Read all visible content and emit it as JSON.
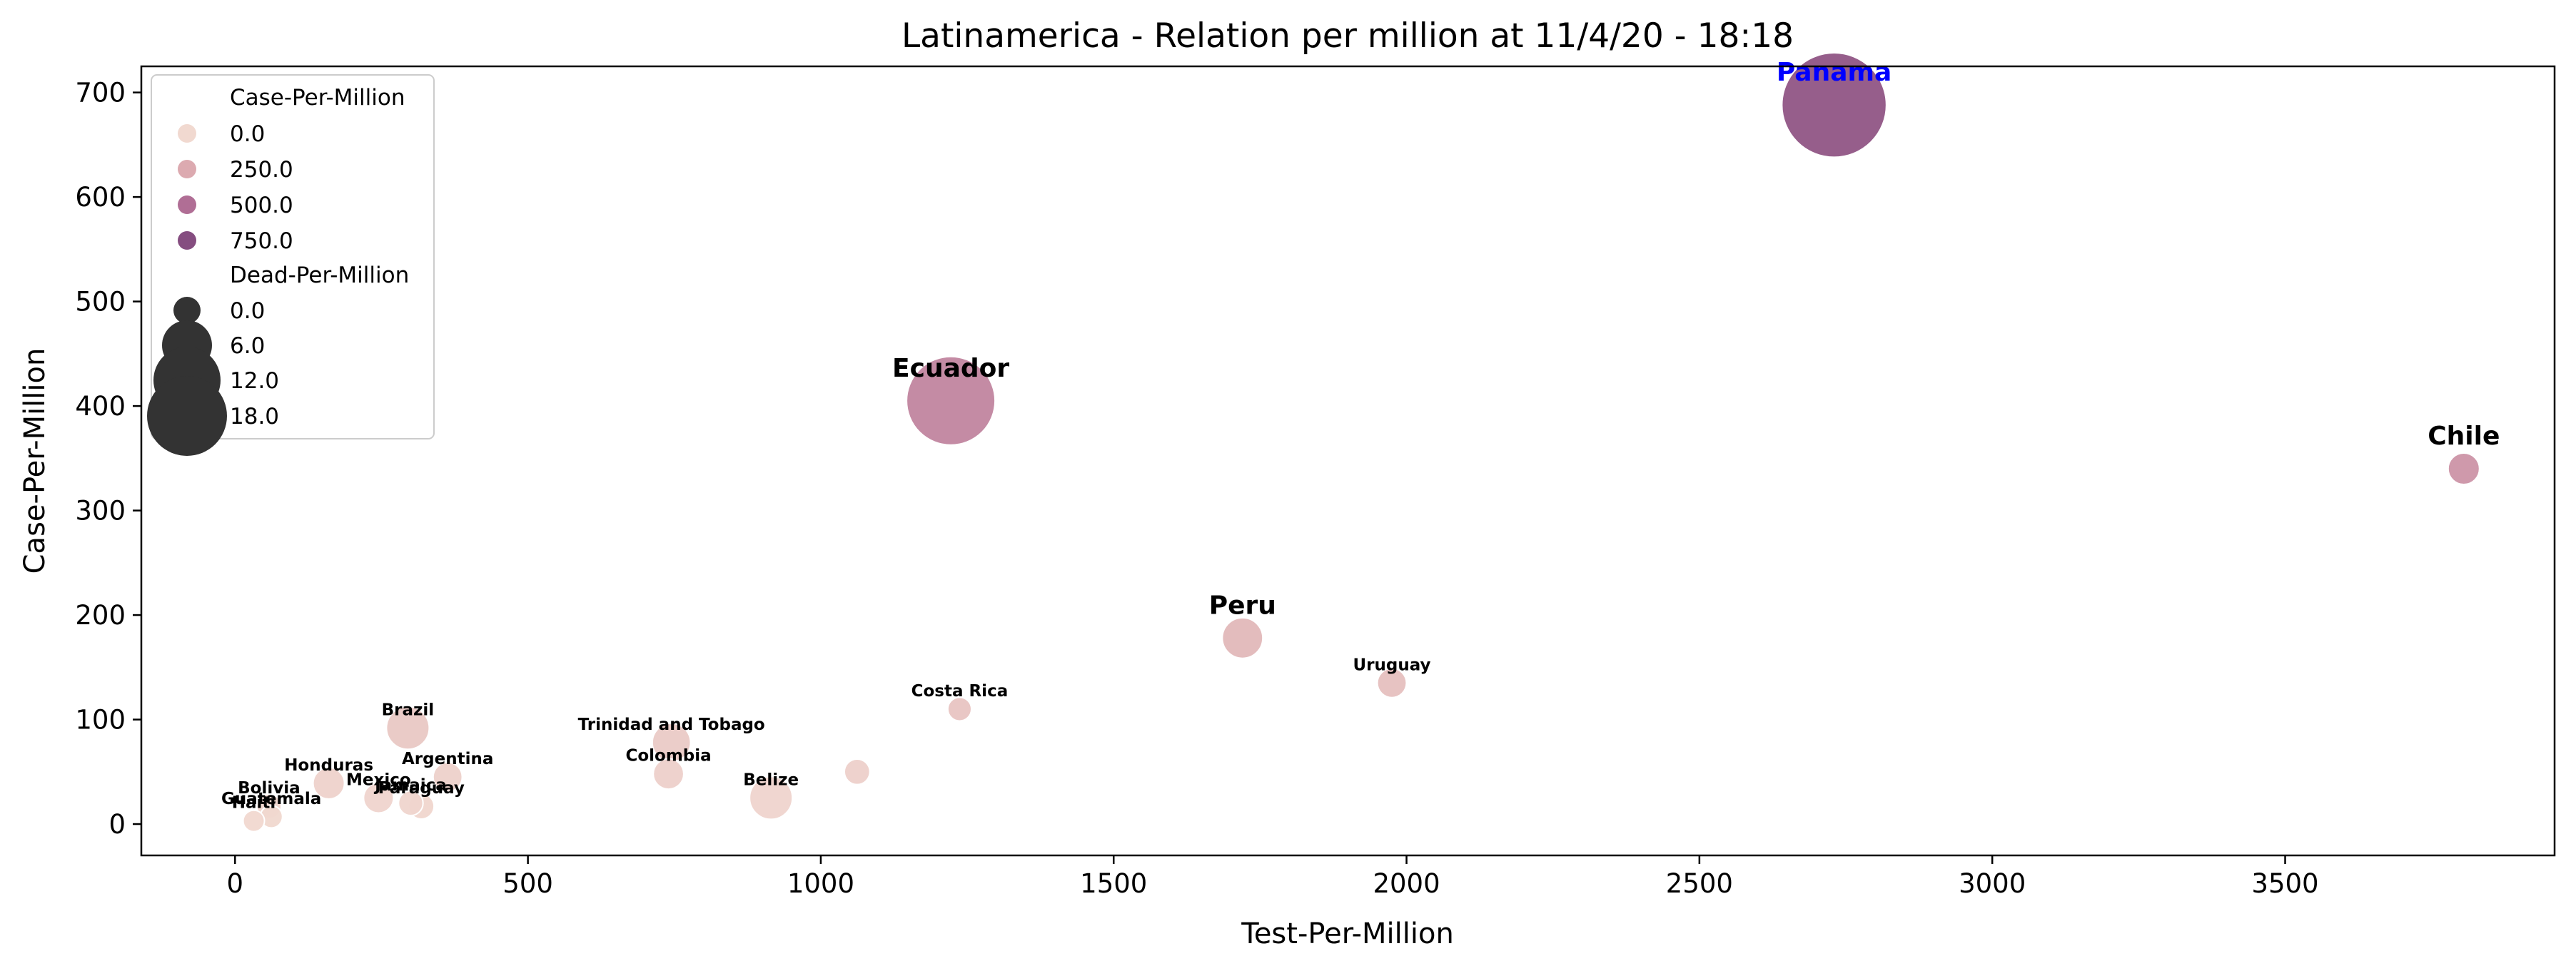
{
  "chart_data": {
    "type": "scatter",
    "title": "Latinamerica - Relation per million at 11/4/20 - 18:18",
    "xlabel": "Test-Per-Million",
    "ylabel": "Case-Per-Million",
    "xlim": [
      -160,
      3960
    ],
    "ylim": [
      -30,
      725
    ],
    "xticks": [
      0,
      500,
      1000,
      1500,
      2000,
      2500,
      3000,
      3500
    ],
    "yticks": [
      0,
      100,
      200,
      300,
      400,
      500,
      600,
      700
    ],
    "grid": false,
    "color_scale": {
      "variable": "Case-Per-Million",
      "stops": [
        {
          "value": 0,
          "color": "#f1d9d0"
        },
        {
          "value": 250,
          "color": "#dcaab0"
        },
        {
          "value": 500,
          "color": "#b06e95"
        },
        {
          "value": 750,
          "color": "#854d80"
        }
      ]
    },
    "size_variable": "Dead-Per-Million",
    "legend": {
      "position": "top-left",
      "hue_title": "Case-Per-Million",
      "hue_entries": [
        {
          "label": "0.0",
          "value": 0
        },
        {
          "label": "250.0",
          "value": 250
        },
        {
          "label": "500.0",
          "value": 500
        },
        {
          "label": "750.0",
          "value": 750
        }
      ],
      "size_title": "Dead-Per-Million",
      "size_entries": [
        {
          "label": "0.0",
          "value": 0
        },
        {
          "label": "6.0",
          "value": 6
        },
        {
          "label": "12.0",
          "value": 12
        },
        {
          "label": "18.0",
          "value": 18
        }
      ]
    },
    "points": [
      {
        "label": "Panama",
        "x": 2730,
        "y": 688,
        "case_per_million": 688,
        "dead_per_million": 18.5,
        "label_style": "large",
        "label_color": "#0000ff"
      },
      {
        "label": "Ecuador",
        "x": 1222,
        "y": 405,
        "case_per_million": 405,
        "dead_per_million": 15,
        "label_style": "large",
        "label_color": "#000000"
      },
      {
        "label": "Chile",
        "x": 3805,
        "y": 340,
        "case_per_million": 340,
        "dead_per_million": 2.5,
        "label_style": "large",
        "label_color": "#000000"
      },
      {
        "label": "Peru",
        "x": 1720,
        "y": 178,
        "case_per_million": 178,
        "dead_per_million": 4.5,
        "label_style": "large",
        "label_color": "#000000"
      },
      {
        "label": "Uruguay",
        "x": 1975,
        "y": 135,
        "case_per_million": 135,
        "dead_per_million": 2,
        "label_style": "small",
        "label_color": "#000000"
      },
      {
        "label": "Costa Rica",
        "x": 1237,
        "y": 110,
        "case_per_million": 110,
        "dead_per_million": 0.8,
        "label_style": "small",
        "label_color": "#000000"
      },
      {
        "label": "Brazil",
        "x": 295,
        "y": 92,
        "case_per_million": 92,
        "dead_per_million": 5,
        "label_style": "small",
        "label_color": "#000000"
      },
      {
        "label": "Trinidad and Tobago",
        "x": 745,
        "y": 78,
        "case_per_million": 78,
        "dead_per_million": 4,
        "label_style": "small",
        "label_color": "#000000"
      },
      {
        "label": "Colombia",
        "x": 740,
        "y": 48,
        "case_per_million": 48,
        "dead_per_million": 2.3,
        "label_style": "small",
        "label_color": "#000000"
      },
      {
        "label": "",
        "x": 1062,
        "y": 50,
        "case_per_million": 50,
        "dead_per_million": 1.2,
        "label_style": "small",
        "label_color": "#000000"
      },
      {
        "label": "Argentina",
        "x": 363,
        "y": 45,
        "case_per_million": 45,
        "dead_per_million": 2,
        "label_style": "small",
        "label_color": "#000000"
      },
      {
        "label": "Honduras",
        "x": 160,
        "y": 39,
        "case_per_million": 39,
        "dead_per_million": 2.5,
        "label_style": "small",
        "label_color": "#000000"
      },
      {
        "label": "Belize",
        "x": 915,
        "y": 25,
        "case_per_million": 25,
        "dead_per_million": 5,
        "label_style": "small",
        "label_color": "#000000"
      },
      {
        "label": "Mexico",
        "x": 245,
        "y": 25,
        "case_per_million": 25,
        "dead_per_million": 2.2,
        "label_style": "small",
        "label_color": "#000000"
      },
      {
        "label": "Jamaica",
        "x": 300,
        "y": 20,
        "case_per_million": 20,
        "dead_per_million": 1,
        "label_style": "small",
        "label_color": "#000000"
      },
      {
        "label": "Paraguay",
        "x": 318,
        "y": 17,
        "case_per_million": 17,
        "dead_per_million": 1.2,
        "label_style": "small",
        "label_color": "#000000"
      },
      {
        "label": "Bolivia",
        "x": 58,
        "y": 17,
        "case_per_million": 17,
        "dead_per_million": 1,
        "label_style": "small",
        "label_color": "#000000"
      },
      {
        "label": "Guatemala",
        "x": 62,
        "y": 7,
        "case_per_million": 7,
        "dead_per_million": 0.5,
        "label_style": "small",
        "label_color": "#000000"
      },
      {
        "label": "Haiti",
        "x": 32,
        "y": 3,
        "case_per_million": 3,
        "dead_per_million": 0.3,
        "label_style": "small",
        "label_color": "#000000"
      }
    ]
  }
}
